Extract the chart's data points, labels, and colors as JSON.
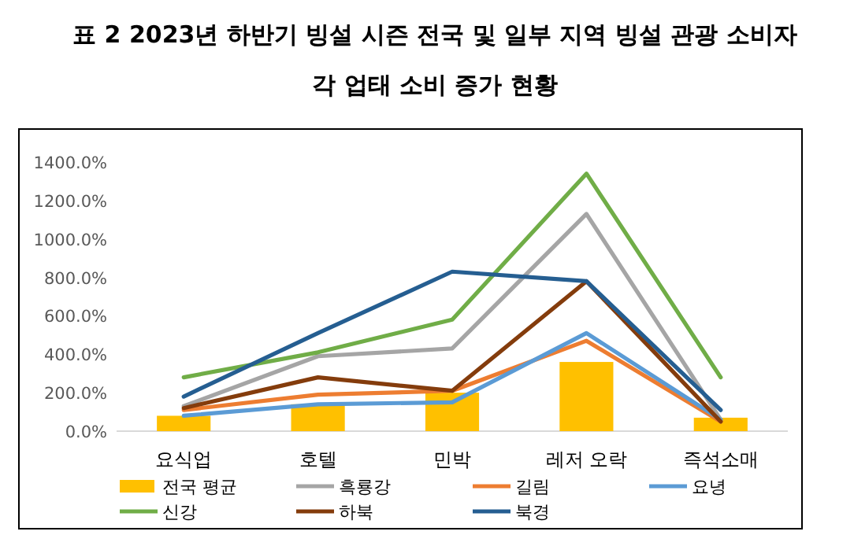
{
  "chart_data": {
    "type": "bar",
    "title": "표 2 2023년 하반기 빙설 시즌 전국 및 일부 지역 빙설 관광 소비자 각 업태 소비 증가 현황",
    "categories": [
      "요식업",
      "호텔",
      "민박",
      "레저 오락",
      "즉석소매"
    ],
    "ylim": [
      0,
      1400
    ],
    "yticks": [
      {
        "value": 0,
        "label": "0.0%"
      },
      {
        "value": 200,
        "label": "200.0%"
      },
      {
        "value": 400,
        "label": "400.0%"
      },
      {
        "value": 600,
        "label": "600.0%"
      },
      {
        "value": 800,
        "label": "800.0%"
      },
      {
        "value": 1000,
        "label": "1000.0%"
      },
      {
        "value": 1200,
        "label": "1200.0%"
      },
      {
        "value": 1400,
        "label": "1400.0%"
      }
    ],
    "legend": "bottom",
    "marker": "none",
    "line_style": "solid",
    "series": [
      {
        "name": "전국 평균",
        "color": "#ffc000",
        "values": [
          80,
          140,
          200,
          360,
          70
        ]
      },
      {
        "name": "흑룡강",
        "type": "line",
        "color": "#a5a5a5",
        "values": [
          130,
          390,
          430,
          1130,
          60
        ]
      },
      {
        "name": "길림",
        "type": "line",
        "color": "#ed7d31",
        "values": [
          110,
          190,
          210,
          470,
          50
        ]
      },
      {
        "name": "요녕",
        "type": "line",
        "color": "#5b9bd5",
        "values": [
          80,
          140,
          150,
          510,
          60
        ]
      },
      {
        "name": "신강",
        "type": "line",
        "color": "#70ad47",
        "values": [
          280,
          410,
          580,
          1340,
          280
        ]
      },
      {
        "name": "하북",
        "type": "line",
        "color": "#843c0c",
        "values": [
          120,
          280,
          210,
          780,
          50
        ]
      },
      {
        "name": "북경",
        "type": "line",
        "color": "#255e91",
        "values": [
          180,
          510,
          830,
          780,
          110
        ]
      }
    ]
  }
}
